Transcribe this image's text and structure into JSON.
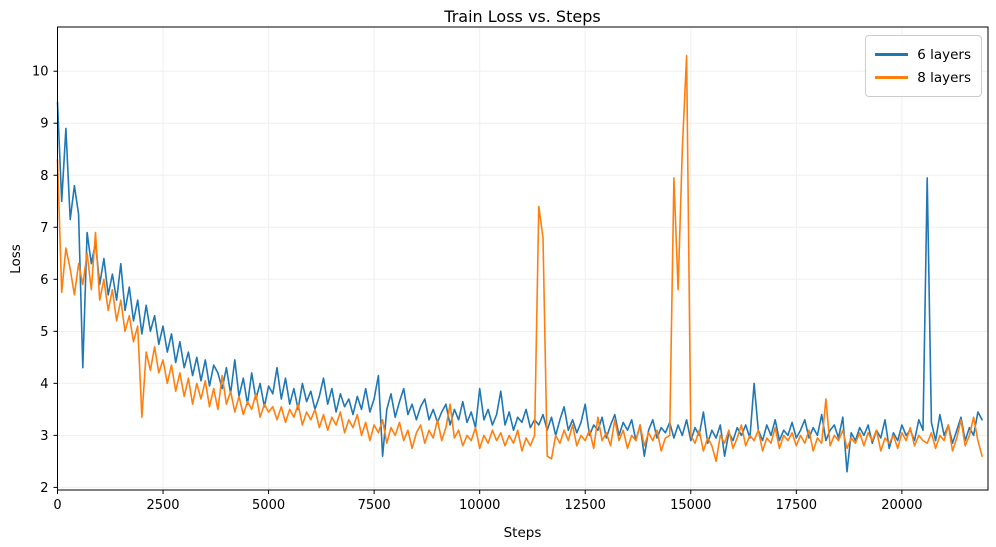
{
  "chart_data": {
    "type": "line",
    "title": "Train Loss vs. Steps",
    "xlabel": "Steps",
    "ylabel": "Loss",
    "xlim": [
      0,
      22040
    ],
    "ylim": [
      1.95,
      10.85
    ],
    "xticks": [
      0,
      2500,
      5000,
      7500,
      10000,
      12500,
      15000,
      17500,
      20000
    ],
    "yticks": [
      2,
      3,
      4,
      5,
      6,
      7,
      8,
      9,
      10
    ],
    "grid": true,
    "grid_color": "#efefef",
    "spine_color": "#000000",
    "legend_position": "upper right",
    "x_start": 0,
    "x_step": 100,
    "series": [
      {
        "name": "6 layers",
        "color": "#1f77b4",
        "values": [
          9.4,
          7.5,
          8.9,
          7.15,
          7.8,
          7.25,
          4.3,
          6.9,
          6.3,
          6.7,
          5.9,
          6.4,
          5.7,
          6.1,
          5.6,
          6.3,
          5.4,
          5.85,
          5.2,
          5.6,
          4.95,
          5.5,
          5.0,
          5.3,
          4.75,
          5.1,
          4.6,
          4.95,
          4.4,
          4.8,
          4.3,
          4.6,
          4.15,
          4.5,
          4.05,
          4.45,
          3.95,
          4.35,
          4.2,
          3.9,
          4.3,
          3.8,
          4.45,
          3.75,
          4.1,
          3.6,
          4.2,
          3.7,
          4.0,
          3.55,
          3.95,
          3.8,
          4.3,
          3.7,
          4.1,
          3.6,
          3.9,
          3.5,
          4.0,
          3.65,
          3.85,
          3.5,
          3.75,
          4.1,
          3.6,
          3.9,
          3.45,
          3.8,
          3.55,
          3.7,
          3.4,
          3.75,
          3.5,
          3.9,
          3.45,
          3.7,
          4.15,
          2.6,
          3.5,
          3.8,
          3.35,
          3.65,
          3.9,
          3.4,
          3.6,
          3.3,
          3.55,
          3.7,
          3.3,
          3.5,
          3.25,
          3.45,
          3.6,
          3.2,
          3.5,
          3.3,
          3.65,
          3.25,
          3.45,
          3.15,
          3.9,
          3.3,
          3.5,
          3.2,
          3.4,
          3.85,
          3.2,
          3.45,
          3.1,
          3.35,
          3.25,
          3.5,
          3.15,
          3.3,
          3.2,
          3.4,
          3.1,
          3.35,
          3.0,
          3.3,
          3.55,
          3.1,
          3.3,
          3.05,
          3.25,
          3.6,
          3.0,
          3.2,
          3.1,
          3.35,
          2.95,
          3.2,
          3.4,
          3.0,
          3.25,
          3.1,
          3.3,
          2.9,
          3.2,
          2.6,
          3.1,
          3.3,
          2.95,
          3.15,
          3.05,
          3.25,
          2.95,
          3.2,
          3.0,
          3.3,
          2.9,
          3.15,
          3.0,
          3.45,
          2.85,
          3.1,
          2.95,
          3.2,
          2.6,
          3.05,
          2.9,
          3.15,
          3.0,
          3.2,
          2.95,
          4.0,
          3.1,
          2.9,
          3.2,
          3.0,
          3.3,
          2.9,
          3.1,
          3.0,
          3.25,
          2.95,
          3.1,
          3.3,
          2.95,
          3.15,
          3.0,
          3.4,
          2.9,
          3.1,
          3.2,
          2.95,
          3.35,
          2.3,
          3.05,
          2.9,
          3.15,
          3.0,
          3.2,
          2.85,
          3.1,
          2.95,
          3.3,
          2.75,
          3.05,
          2.9,
          3.2,
          3.0,
          3.1,
          2.9,
          3.3,
          3.1,
          7.95,
          3.25,
          2.9,
          3.4,
          3.0,
          3.2,
          2.85,
          3.1,
          3.35,
          2.9,
          3.15,
          3.0,
          3.45,
          3.3
        ]
      },
      {
        "name": "8 layers",
        "color": "#ff7f0e",
        "values": [
          8.3,
          5.75,
          6.6,
          6.2,
          5.7,
          6.3,
          5.9,
          6.5,
          5.8,
          6.9,
          5.6,
          6.0,
          5.4,
          5.8,
          5.2,
          5.6,
          5.0,
          5.3,
          4.8,
          5.1,
          3.35,
          4.6,
          4.25,
          4.7,
          4.2,
          4.45,
          4.0,
          4.35,
          3.85,
          4.2,
          3.75,
          4.1,
          3.6,
          4.0,
          3.7,
          4.05,
          3.55,
          3.9,
          3.5,
          4.15,
          3.6,
          3.85,
          3.45,
          3.75,
          3.4,
          3.65,
          3.5,
          3.8,
          3.35,
          3.6,
          3.45,
          3.55,
          3.3,
          3.55,
          3.25,
          3.5,
          3.35,
          3.6,
          3.2,
          3.45,
          3.3,
          3.5,
          3.15,
          3.4,
          3.1,
          3.35,
          3.2,
          3.45,
          3.05,
          3.3,
          3.15,
          3.4,
          3.0,
          3.25,
          2.9,
          3.2,
          3.05,
          3.3,
          2.85,
          3.15,
          3.0,
          3.25,
          2.9,
          3.1,
          2.75,
          3.05,
          3.2,
          2.85,
          3.1,
          2.95,
          3.3,
          2.9,
          3.15,
          3.6,
          2.95,
          3.1,
          2.8,
          3.0,
          2.9,
          3.15,
          2.75,
          3.0,
          2.85,
          3.1,
          2.9,
          3.05,
          2.8,
          3.0,
          2.85,
          3.1,
          2.7,
          2.95,
          2.8,
          3.0,
          7.4,
          6.8,
          2.6,
          2.55,
          3.0,
          2.85,
          3.1,
          2.9,
          3.2,
          2.8,
          3.0,
          2.9,
          3.1,
          2.75,
          3.35,
          2.9,
          3.05,
          2.8,
          3.3,
          2.9,
          3.1,
          2.75,
          3.0,
          2.9,
          3.2,
          2.8,
          3.05,
          2.9,
          3.1,
          2.7,
          2.95,
          3.0,
          7.95,
          5.8,
          8.5,
          10.3,
          3.0,
          2.85,
          3.1,
          2.7,
          2.95,
          2.8,
          2.5,
          3.0,
          2.85,
          3.1,
          2.75,
          2.95,
          3.2,
          2.8,
          3.0,
          2.9,
          3.1,
          2.7,
          2.95,
          2.85,
          3.15,
          2.75,
          3.0,
          2.9,
          3.05,
          2.8,
          3.0,
          2.85,
          3.1,
          2.7,
          2.95,
          2.85,
          3.7,
          2.8,
          3.0,
          2.9,
          3.1,
          2.75,
          2.95,
          2.85,
          3.05,
          2.8,
          3.05,
          2.9,
          3.1,
          2.7,
          2.95,
          2.85,
          3.0,
          2.75,
          3.05,
          2.9,
          3.15,
          2.8,
          3.0,
          2.9,
          2.85,
          3.05,
          2.75,
          3.0,
          2.9,
          3.2,
          2.7,
          2.95,
          3.3,
          2.8,
          3.0,
          3.35,
          2.9,
          2.6
        ]
      }
    ]
  }
}
